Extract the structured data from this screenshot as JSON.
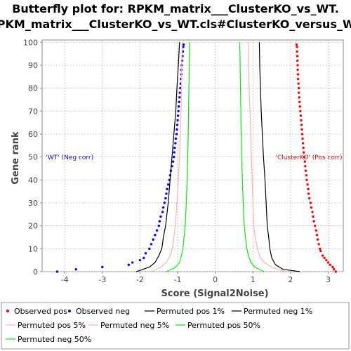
{
  "chart_data": {
    "type": "scatter",
    "title": [
      "Butterfly plot for: RPKM_matrix___ClusterKO_vs_WT.",
      "RPKM_matrix___ClusterKO_vs_WT.cls#ClusterKO_versus_WT"
    ],
    "xlabel": "Score (Signal2Noise)",
    "ylabel": "Gene rank",
    "xlim": [
      -4.6,
      3.4
    ],
    "ylim": [
      0,
      101
    ],
    "xticks": [
      -4,
      -3,
      -2,
      -1,
      0,
      1,
      2,
      3
    ],
    "yticks": [
      0,
      10,
      20,
      30,
      40,
      50,
      60,
      70,
      80,
      90,
      100
    ],
    "grid": true,
    "annotations": [
      {
        "text": "'WT' (Neg corr)",
        "x": -4.5,
        "y": 49,
        "color": "#1111cc"
      },
      {
        "text": "'ClusterKO' (Pos corr)",
        "x": 1.6,
        "y": 49,
        "color": "#cc1111"
      }
    ],
    "series": [
      {
        "name": "Observed pos",
        "kind": "points",
        "color": "#ff0000",
        "points": [
          [
            3.2,
            0
          ],
          [
            3.15,
            1
          ],
          [
            3.12,
            2
          ],
          [
            3.05,
            3
          ],
          [
            3.0,
            4
          ],
          [
            2.95,
            5
          ],
          [
            2.9,
            6
          ],
          [
            2.85,
            7
          ],
          [
            2.8,
            9
          ],
          [
            2.78,
            10
          ],
          [
            2.75,
            12
          ],
          [
            2.72,
            14
          ],
          [
            2.7,
            16
          ],
          [
            2.68,
            18
          ],
          [
            2.65,
            20
          ],
          [
            2.62,
            22
          ],
          [
            2.6,
            24
          ],
          [
            2.58,
            26
          ],
          [
            2.55,
            28
          ],
          [
            2.53,
            30
          ],
          [
            2.5,
            32
          ],
          [
            2.48,
            34
          ],
          [
            2.47,
            36
          ],
          [
            2.45,
            38
          ],
          [
            2.43,
            40
          ],
          [
            2.42,
            42
          ],
          [
            2.4,
            44
          ],
          [
            2.39,
            46
          ],
          [
            2.38,
            48
          ],
          [
            2.36,
            50
          ],
          [
            2.35,
            52
          ],
          [
            2.34,
            54
          ],
          [
            2.33,
            56
          ],
          [
            2.32,
            58
          ],
          [
            2.31,
            60
          ],
          [
            2.3,
            62
          ],
          [
            2.29,
            64
          ],
          [
            2.28,
            66
          ],
          [
            2.27,
            68
          ],
          [
            2.26,
            70
          ],
          [
            2.25,
            72
          ],
          [
            2.24,
            74
          ],
          [
            2.23,
            76
          ],
          [
            2.22,
            78
          ],
          [
            2.22,
            80
          ],
          [
            2.21,
            82
          ],
          [
            2.2,
            84
          ],
          [
            2.2,
            86
          ],
          [
            2.19,
            88
          ],
          [
            2.19,
            90
          ],
          [
            2.18,
            92
          ],
          [
            2.18,
            94
          ],
          [
            2.17,
            96
          ],
          [
            2.17,
            98
          ],
          [
            2.16,
            99
          ]
        ]
      },
      {
        "name": "Observed neg",
        "kind": "points",
        "color": "#0000ff",
        "points": [
          [
            -4.2,
            0
          ],
          [
            -3.7,
            1
          ],
          [
            -3.0,
            2
          ],
          [
            -2.3,
            3
          ],
          [
            -2.2,
            4
          ],
          [
            -2.0,
            5
          ],
          [
            -1.9,
            6
          ],
          [
            -1.85,
            8
          ],
          [
            -1.75,
            10
          ],
          [
            -1.7,
            12
          ],
          [
            -1.65,
            14
          ],
          [
            -1.6,
            16
          ],
          [
            -1.55,
            18
          ],
          [
            -1.5,
            20
          ],
          [
            -1.48,
            22
          ],
          [
            -1.45,
            24
          ],
          [
            -1.4,
            26
          ],
          [
            -1.38,
            28
          ],
          [
            -1.35,
            30
          ],
          [
            -1.32,
            32
          ],
          [
            -1.3,
            34
          ],
          [
            -1.28,
            36
          ],
          [
            -1.25,
            38
          ],
          [
            -1.22,
            40
          ],
          [
            -1.2,
            42
          ],
          [
            -1.18,
            44
          ],
          [
            -1.15,
            46
          ],
          [
            -1.12,
            48
          ],
          [
            -1.1,
            50
          ],
          [
            -1.09,
            52
          ],
          [
            -1.08,
            54
          ],
          [
            -1.06,
            56
          ],
          [
            -1.05,
            58
          ],
          [
            -1.03,
            60
          ],
          [
            -1.02,
            62
          ],
          [
            -1.01,
            64
          ],
          [
            -1.0,
            66
          ],
          [
            -0.99,
            68
          ],
          [
            -0.98,
            70
          ],
          [
            -0.97,
            72
          ],
          [
            -0.96,
            74
          ],
          [
            -0.95,
            76
          ],
          [
            -0.94,
            78
          ],
          [
            -0.93,
            80
          ],
          [
            -0.92,
            82
          ],
          [
            -0.91,
            84
          ],
          [
            -0.9,
            86
          ],
          [
            -0.9,
            88
          ],
          [
            -0.89,
            90
          ],
          [
            -0.88,
            92
          ],
          [
            -0.87,
            94
          ],
          [
            -0.86,
            96
          ],
          [
            -0.85,
            98
          ],
          [
            -0.84,
            99
          ]
        ]
      },
      {
        "name": "Permuted pos 1%",
        "kind": "line",
        "color": "#000000",
        "points": [
          [
            2.25,
            0
          ],
          [
            1.8,
            1
          ],
          [
            1.6,
            3
          ],
          [
            1.5,
            6
          ],
          [
            1.45,
            10
          ],
          [
            1.42,
            15
          ],
          [
            1.38,
            20
          ],
          [
            1.35,
            30
          ],
          [
            1.32,
            40
          ],
          [
            1.28,
            50
          ],
          [
            1.25,
            60
          ],
          [
            1.22,
            70
          ],
          [
            1.2,
            80
          ],
          [
            1.18,
            90
          ],
          [
            1.17,
            100
          ]
        ]
      },
      {
        "name": "Permuted neg 1%",
        "kind": "line",
        "color": "#000000",
        "points": [
          [
            -2.1,
            0
          ],
          [
            -1.75,
            2
          ],
          [
            -1.6,
            4
          ],
          [
            -1.5,
            7
          ],
          [
            -1.42,
            10
          ],
          [
            -1.38,
            15
          ],
          [
            -1.32,
            20
          ],
          [
            -1.25,
            30
          ],
          [
            -1.2,
            40
          ],
          [
            -1.15,
            50
          ],
          [
            -1.1,
            60
          ],
          [
            -1.05,
            70
          ],
          [
            -1.02,
            80
          ],
          [
            -0.98,
            90
          ],
          [
            -0.95,
            100
          ]
        ]
      },
      {
        "name": "Permuted pos 5%",
        "kind": "line",
        "color": "#ffb0b0",
        "points": [
          [
            1.85,
            0
          ],
          [
            1.5,
            2
          ],
          [
            1.3,
            4
          ],
          [
            1.2,
            6
          ],
          [
            1.12,
            10
          ],
          [
            1.06,
            15
          ],
          [
            1.02,
            20
          ],
          [
            1.0,
            30
          ],
          [
            0.98,
            40
          ],
          [
            0.96,
            50
          ],
          [
            0.94,
            60
          ],
          [
            0.92,
            70
          ],
          [
            0.9,
            80
          ],
          [
            0.89,
            90
          ],
          [
            0.88,
            100
          ]
        ]
      },
      {
        "name": "Permuted neg 5%",
        "kind": "line",
        "color": "#ffb0b0",
        "points": [
          [
            -1.7,
            0
          ],
          [
            -1.45,
            2
          ],
          [
            -1.3,
            4
          ],
          [
            -1.2,
            7
          ],
          [
            -1.14,
            10
          ],
          [
            -1.1,
            15
          ],
          [
            -1.06,
            20
          ],
          [
            -1.02,
            30
          ],
          [
            -0.98,
            40
          ],
          [
            -0.95,
            50
          ],
          [
            -0.93,
            60
          ],
          [
            -0.91,
            70
          ],
          [
            -0.9,
            80
          ],
          [
            -0.89,
            90
          ],
          [
            -0.88,
            100
          ]
        ]
      },
      {
        "name": "Permuted pos 50%",
        "kind": "line",
        "color": "#00ee00",
        "points": [
          [
            1.3,
            0
          ],
          [
            1.05,
            2
          ],
          [
            0.95,
            4
          ],
          [
            0.88,
            7
          ],
          [
            0.84,
            10
          ],
          [
            0.8,
            15
          ],
          [
            0.77,
            20
          ],
          [
            0.74,
            30
          ],
          [
            0.72,
            40
          ],
          [
            0.7,
            50
          ],
          [
            0.69,
            60
          ],
          [
            0.68,
            70
          ],
          [
            0.67,
            80
          ],
          [
            0.66,
            90
          ],
          [
            0.65,
            100
          ]
        ]
      },
      {
        "name": "Permuted neg 50%",
        "kind": "line",
        "color": "#00ee00",
        "points": [
          [
            -1.3,
            0
          ],
          [
            -1.05,
            2
          ],
          [
            -0.95,
            4
          ],
          [
            -0.9,
            7
          ],
          [
            -0.86,
            10
          ],
          [
            -0.83,
            15
          ],
          [
            -0.8,
            20
          ],
          [
            -0.77,
            30
          ],
          [
            -0.75,
            40
          ],
          [
            -0.73,
            50
          ],
          [
            -0.72,
            60
          ],
          [
            -0.71,
            70
          ],
          [
            -0.7,
            80
          ],
          [
            -0.69,
            90
          ],
          [
            -0.68,
            100
          ]
        ]
      }
    ]
  }
}
